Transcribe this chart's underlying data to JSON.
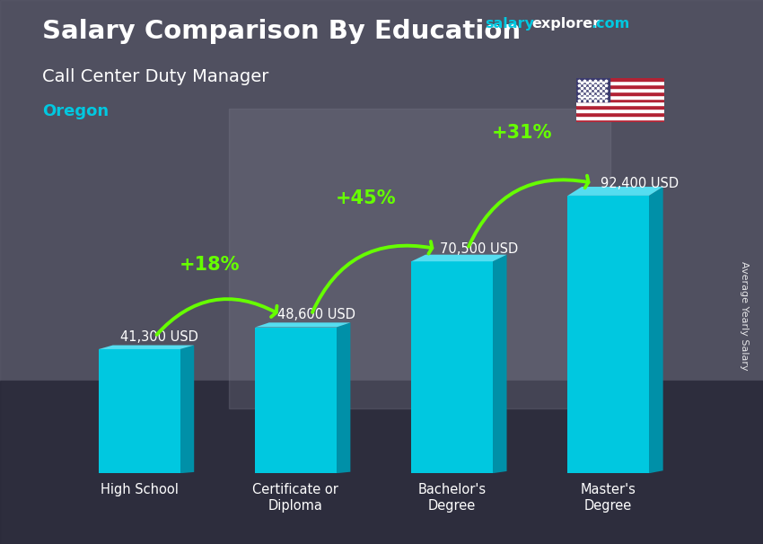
{
  "title_main": "Salary Comparison By Education",
  "title_sub": "Call Center Duty Manager",
  "title_location": "Oregon",
  "ylabel": "Average Yearly Salary",
  "categories": [
    "High School",
    "Certificate or\nDiploma",
    "Bachelor's\nDegree",
    "Master's\nDegree"
  ],
  "values": [
    41300,
    48600,
    70500,
    92400
  ],
  "labels": [
    "41,300 USD",
    "48,600 USD",
    "70,500 USD",
    "92,400 USD"
  ],
  "pct_changes": [
    "+18%",
    "+45%",
    "+31%"
  ],
  "bar_color_face": "#00c8e0",
  "bar_color_dark": "#0090a8",
  "bar_color_top": "#55ddf0",
  "arrow_color": "#66ff00",
  "pct_color": "#66ff00",
  "label_color": "#ffffff",
  "title_color": "#ffffff",
  "sub_color": "#ffffff",
  "location_color": "#00c8e0",
  "wm_salary": "#00c8e0",
  "wm_explorer": "#ffffff",
  "wm_com": "#00c8e0",
  "bg_color": "#3a3a4a"
}
